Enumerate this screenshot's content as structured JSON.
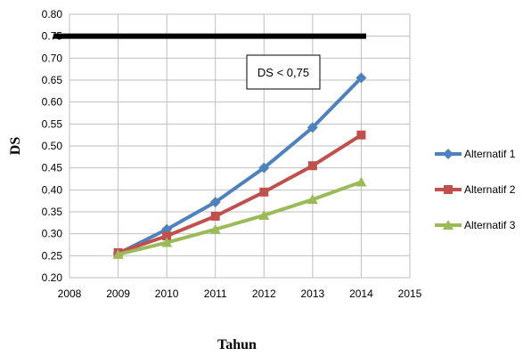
{
  "chart_data": {
    "type": "line",
    "title": "",
    "xlabel": "Tahun",
    "ylabel": "DS",
    "xlim": [
      2008,
      2015
    ],
    "ylim": [
      0.2,
      0.8
    ],
    "xticks": [
      2008,
      2009,
      2010,
      2011,
      2012,
      2013,
      2014,
      2015
    ],
    "yticks": [
      0.2,
      0.25,
      0.3,
      0.35,
      0.4,
      0.45,
      0.5,
      0.55,
      0.6,
      0.65,
      0.7,
      0.75,
      0.8
    ],
    "ytick_labels": [
      "0.20",
      "0.25",
      "0.30",
      "0.35",
      "0.40",
      "0.45",
      "0.50",
      "0.55",
      "0.60",
      "0.65",
      "0.70",
      "0.75",
      "0.80"
    ],
    "grid": true,
    "legend_position": "right",
    "x": [
      2009,
      2010,
      2011,
      2012,
      2013,
      2014
    ],
    "series": [
      {
        "name": "Alternatif 1",
        "color": "#4F81BD",
        "marker": "diamond",
        "values": [
          0.255,
          0.31,
          0.372,
          0.45,
          0.542,
          0.655
        ]
      },
      {
        "name": "Alternatif 2",
        "color": "#C0504D",
        "marker": "square",
        "values": [
          0.257,
          0.295,
          0.34,
          0.395,
          0.455,
          0.525
        ]
      },
      {
        "name": "Alternatif 3",
        "color": "#9BBB59",
        "marker": "triangle",
        "values": [
          0.253,
          0.28,
          0.31,
          0.342,
          0.378,
          0.418
        ]
      }
    ],
    "threshold": {
      "value": 0.75,
      "color": "#000000"
    },
    "annotation": {
      "text": "DS < 0,75"
    }
  }
}
